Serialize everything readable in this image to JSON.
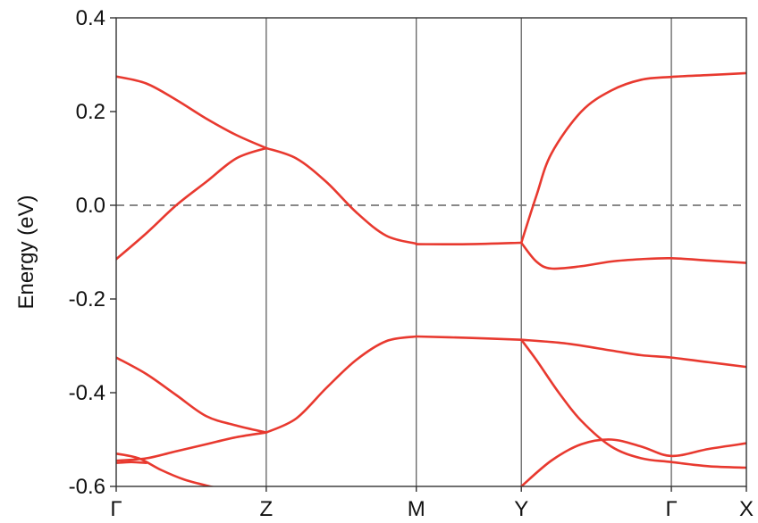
{
  "chart_data": {
    "type": "line",
    "title": "",
    "ylabel": "Energy (eV)",
    "xlabel": "",
    "ylim": [
      -0.6,
      0.4
    ],
    "yticks": [
      {
        "value": 0.4,
        "label": "0.4"
      },
      {
        "value": 0.2,
        "label": "0.2"
      },
      {
        "value": 0.0,
        "label": "0.0"
      },
      {
        "value": -0.2,
        "label": "-0.2"
      },
      {
        "value": -0.4,
        "label": "-0.4"
      },
      {
        "value": -0.6,
        "label": "-0.6"
      }
    ],
    "kpoints": [
      {
        "label": "Γ",
        "pos": 0.0
      },
      {
        "label": "Z",
        "pos": 1.0
      },
      {
        "label": "M",
        "pos": 2.0
      },
      {
        "label": "Y",
        "pos": 2.7
      },
      {
        "label": "Γ",
        "pos": 3.7
      },
      {
        "label": "X",
        "pos": 4.2
      }
    ],
    "fermi_level": 0.0,
    "line_color": "#e8392f",
    "series": [
      {
        "x": [
          0,
          0.2,
          0.4,
          0.6,
          0.8,
          1.0
        ],
        "y": [
          0.275,
          0.26,
          0.225,
          0.185,
          0.15,
          0.122
        ]
      },
      {
        "x": [
          0,
          0.2,
          0.4,
          0.6,
          0.8,
          1.0
        ],
        "y": [
          -0.115,
          -0.06,
          0.0,
          0.05,
          0.1,
          0.122
        ]
      },
      {
        "x": [
          1.0,
          1.2,
          1.4,
          1.6,
          1.8,
          2.0
        ],
        "y": [
          0.122,
          0.1,
          0.05,
          -0.015,
          -0.065,
          -0.082
        ]
      },
      {
        "x": [
          2.0,
          2.35,
          2.7
        ],
        "y": [
          -0.083,
          -0.083,
          -0.08
        ]
      },
      {
        "x": [
          2.7,
          2.8,
          2.9,
          3.1,
          3.3,
          3.5,
          3.7,
          3.95,
          4.2
        ],
        "y": [
          -0.08,
          0.02,
          0.11,
          0.2,
          0.245,
          0.268,
          0.274,
          0.278,
          0.282
        ]
      },
      {
        "x": [
          2.7,
          2.8,
          2.9,
          3.1,
          3.3,
          3.5,
          3.7,
          3.95,
          4.2
        ],
        "y": [
          -0.08,
          -0.12,
          -0.135,
          -0.13,
          -0.12,
          -0.115,
          -0.113,
          -0.118,
          -0.123
        ]
      },
      {
        "x": [
          0,
          0.2,
          0.4,
          0.6,
          0.8,
          1.0
        ],
        "y": [
          -0.325,
          -0.36,
          -0.405,
          -0.45,
          -0.47,
          -0.485
        ]
      },
      {
        "x": [
          0,
          0.2,
          0.4,
          0.6,
          0.8,
          1.0
        ],
        "y": [
          -0.545,
          -0.54,
          -0.525,
          -0.51,
          -0.495,
          -0.485
        ]
      },
      {
        "x": [
          1.0,
          1.2,
          1.4,
          1.6,
          1.8,
          2.0
        ],
        "y": [
          -0.485,
          -0.455,
          -0.39,
          -0.33,
          -0.29,
          -0.28
        ]
      },
      {
        "x": [
          2.0,
          2.35,
          2.7
        ],
        "y": [
          -0.28,
          -0.283,
          -0.287
        ]
      },
      {
        "x": [
          2.7,
          3.0,
          3.3,
          3.5,
          3.7,
          3.95,
          4.2
        ],
        "y": [
          -0.287,
          -0.295,
          -0.31,
          -0.32,
          -0.325,
          -0.335,
          -0.345
        ]
      },
      {
        "x": [
          2.7,
          2.8,
          2.95,
          3.1,
          3.3,
          3.5,
          3.7,
          3.95,
          4.2
        ],
        "y": [
          -0.287,
          -0.33,
          -0.4,
          -0.46,
          -0.515,
          -0.54,
          -0.548,
          -0.557,
          -0.56
        ]
      },
      {
        "x": [
          2.7,
          2.9,
          3.1,
          3.3,
          3.5,
          3.7,
          3.95,
          4.2
        ],
        "y": [
          -0.6,
          -0.545,
          -0.51,
          -0.5,
          -0.515,
          -0.535,
          -0.52,
          -0.508
        ]
      },
      {
        "x": [
          0,
          0.15,
          0.3,
          0.45,
          0.6,
          0.7
        ],
        "y": [
          -0.53,
          -0.54,
          -0.565,
          -0.585,
          -0.598,
          -0.605
        ]
      },
      {
        "x": [
          0,
          0.1,
          0.2
        ],
        "y": [
          -0.55,
          -0.548,
          -0.55
        ]
      }
    ]
  }
}
